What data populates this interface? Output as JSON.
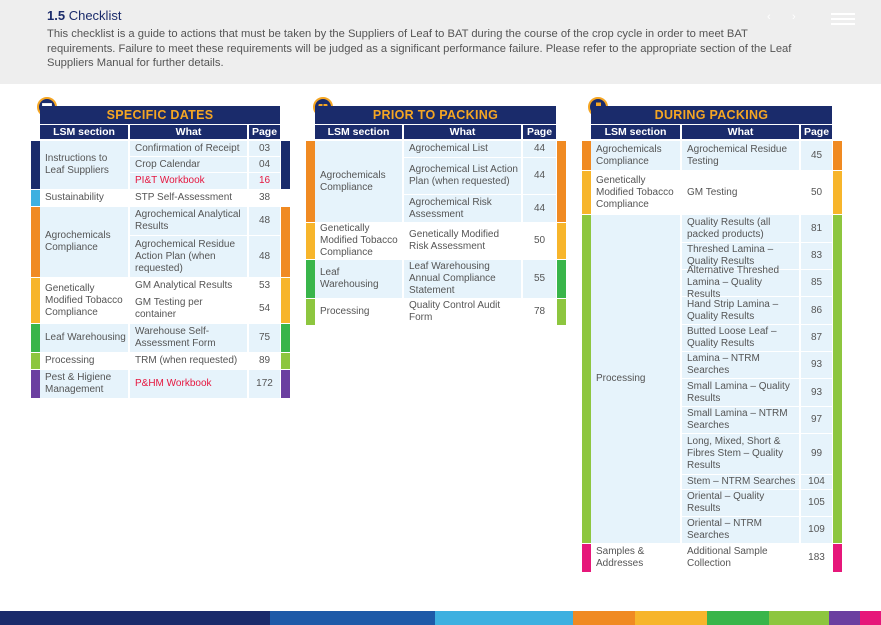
{
  "header": {
    "section_number": "1.5",
    "section_title": "Checklist",
    "body": "This checklist is a guide to actions that must be taken by the Suppliers of Leaf to BAT during the course of the crop cycle in order to meet BAT requirements. Failure to meet these requirements will be judged as a significant performance failure. Please refer to the appropriate section of the Leaf Suppliers Manual for further details."
  },
  "nav": {
    "prev": "‹",
    "next": "›"
  },
  "columns": {
    "section": "LSM section",
    "what": "What",
    "page": "Page"
  },
  "colors": {
    "navy": "#1a2b6b",
    "orange": "#f08a22",
    "yellow": "#f7b52b",
    "green": "#39b54a",
    "lime": "#8dc63f",
    "purple": "#6b3fa0",
    "sky": "#3eb0e0",
    "pink": "#e6177a",
    "red_text": "#e5173f"
  },
  "panels": {
    "specific": {
      "title": "SPECIFIC DATES",
      "icon": "calendar-icon",
      "groups": [
        {
          "section": "Instructions to Leaf Suppliers",
          "color": "#1a2b6b"
        },
        {
          "section": "Sustainability",
          "color": "#3eb0e0"
        },
        {
          "section": "Agrochemicals Compliance",
          "color": "#f08a22"
        },
        {
          "section": "Genetically Modified Tobacco Compliance",
          "color": "#f7b52b"
        },
        {
          "section": "Leaf Warehousing",
          "color": "#39b54a"
        },
        {
          "section": "Processing",
          "color": "#8dc63f"
        },
        {
          "section": "Pest & Higiene Management",
          "color": "#6b3fa0"
        }
      ],
      "rows": [
        {
          "what": "Confirmation of Receipt",
          "page": "03"
        },
        {
          "what": "Crop Calendar",
          "page": "04"
        },
        {
          "what": "PI&T Workbook",
          "page": "16"
        },
        {
          "what": "STP Self-Assessment",
          "page": "38"
        },
        {
          "what": "Agrochemical Analytical Results",
          "page": "48"
        },
        {
          "what": "Agrochemical Residue Action Plan (when requested)",
          "page": "48"
        },
        {
          "what": "GM Analytical Results",
          "page": "53"
        },
        {
          "what": "GM Testing per container",
          "page": "54"
        },
        {
          "what": "Warehouse Self-Assessment Form",
          "page": "75"
        },
        {
          "what": "TRM (when requested)",
          "page": "89"
        },
        {
          "what": "P&HM Workbook",
          "page": "172"
        }
      ]
    },
    "prior": {
      "title": "PRIOR TO PACKING",
      "icon": "box-icon",
      "groups": [
        {
          "section": "Agrochemicals Compliance",
          "color": "#f08a22"
        },
        {
          "section": "Genetically Modified Tobacco Compliance",
          "color": "#f7b52b"
        },
        {
          "section": "Leaf Warehousing",
          "color": "#39b54a"
        },
        {
          "section": "Processing",
          "color": "#8dc63f"
        }
      ],
      "rows": [
        {
          "what": "Agrochemical List",
          "page": "44"
        },
        {
          "what": "Agrochemical List Action Plan (when requested)",
          "page": "44"
        },
        {
          "what": "Agrochemical Risk Assessment",
          "page": "44"
        },
        {
          "what": "Genetically Modified Risk Assessment",
          "page": "50"
        },
        {
          "what": "Leaf Warehousing Annual Compliance Statement",
          "page": "55"
        },
        {
          "what": "Quality Control Audit Form",
          "page": "78"
        }
      ]
    },
    "during": {
      "title": "DURING PACKING",
      "icon": "hand-box-icon",
      "groups": [
        {
          "section": "Agrochemicals Compliance",
          "color": "#f08a22"
        },
        {
          "section": "Genetically Modified Tobacco Compliance",
          "color": "#f7b52b"
        },
        {
          "section": "Processing",
          "color": "#8dc63f"
        },
        {
          "section": "Samples & Addresses",
          "color": "#e6177a"
        }
      ],
      "rows": [
        {
          "what": "Agrochemical Residue Testing",
          "page": "45"
        },
        {
          "what": "GM Testing",
          "page": "50"
        },
        {
          "what": "Quality Results (all packed products)",
          "page": "81"
        },
        {
          "what": "Threshed Lamina – Quality Results",
          "page": "83"
        },
        {
          "what": "Alternative Threshed Lamina – Quality Results",
          "page": "85"
        },
        {
          "what": "Hand Strip Lamina – Quality Results",
          "page": "86"
        },
        {
          "what": "Butted Loose Leaf – Quality Results",
          "page": "87"
        },
        {
          "what": "Lamina – NTRM Searches",
          "page": "93"
        },
        {
          "what": "Small Lamina – Quality Results",
          "page": "93"
        },
        {
          "what": "Small Lamina – NTRM Searches",
          "page": "97"
        },
        {
          "what": "Long, Mixed, Short & Fibres Stem – Quality Results",
          "page": "99"
        },
        {
          "what": "Stem – NTRM Searches",
          "page": "104"
        },
        {
          "what": "Oriental – Quality Results",
          "page": "105"
        },
        {
          "what": "Oriental – NTRM Searches",
          "page": "109"
        },
        {
          "what": "Additional Sample Collection",
          "page": "183"
        }
      ]
    }
  },
  "footer_colors": [
    "#1a2b6b",
    "#1a2b6b",
    "#1e5aa8",
    "#3eb0e0",
    "#f08a22",
    "#f7b52b",
    "#39b54a",
    "#8dc63f",
    "#6b3fa0",
    "#e6177a"
  ]
}
